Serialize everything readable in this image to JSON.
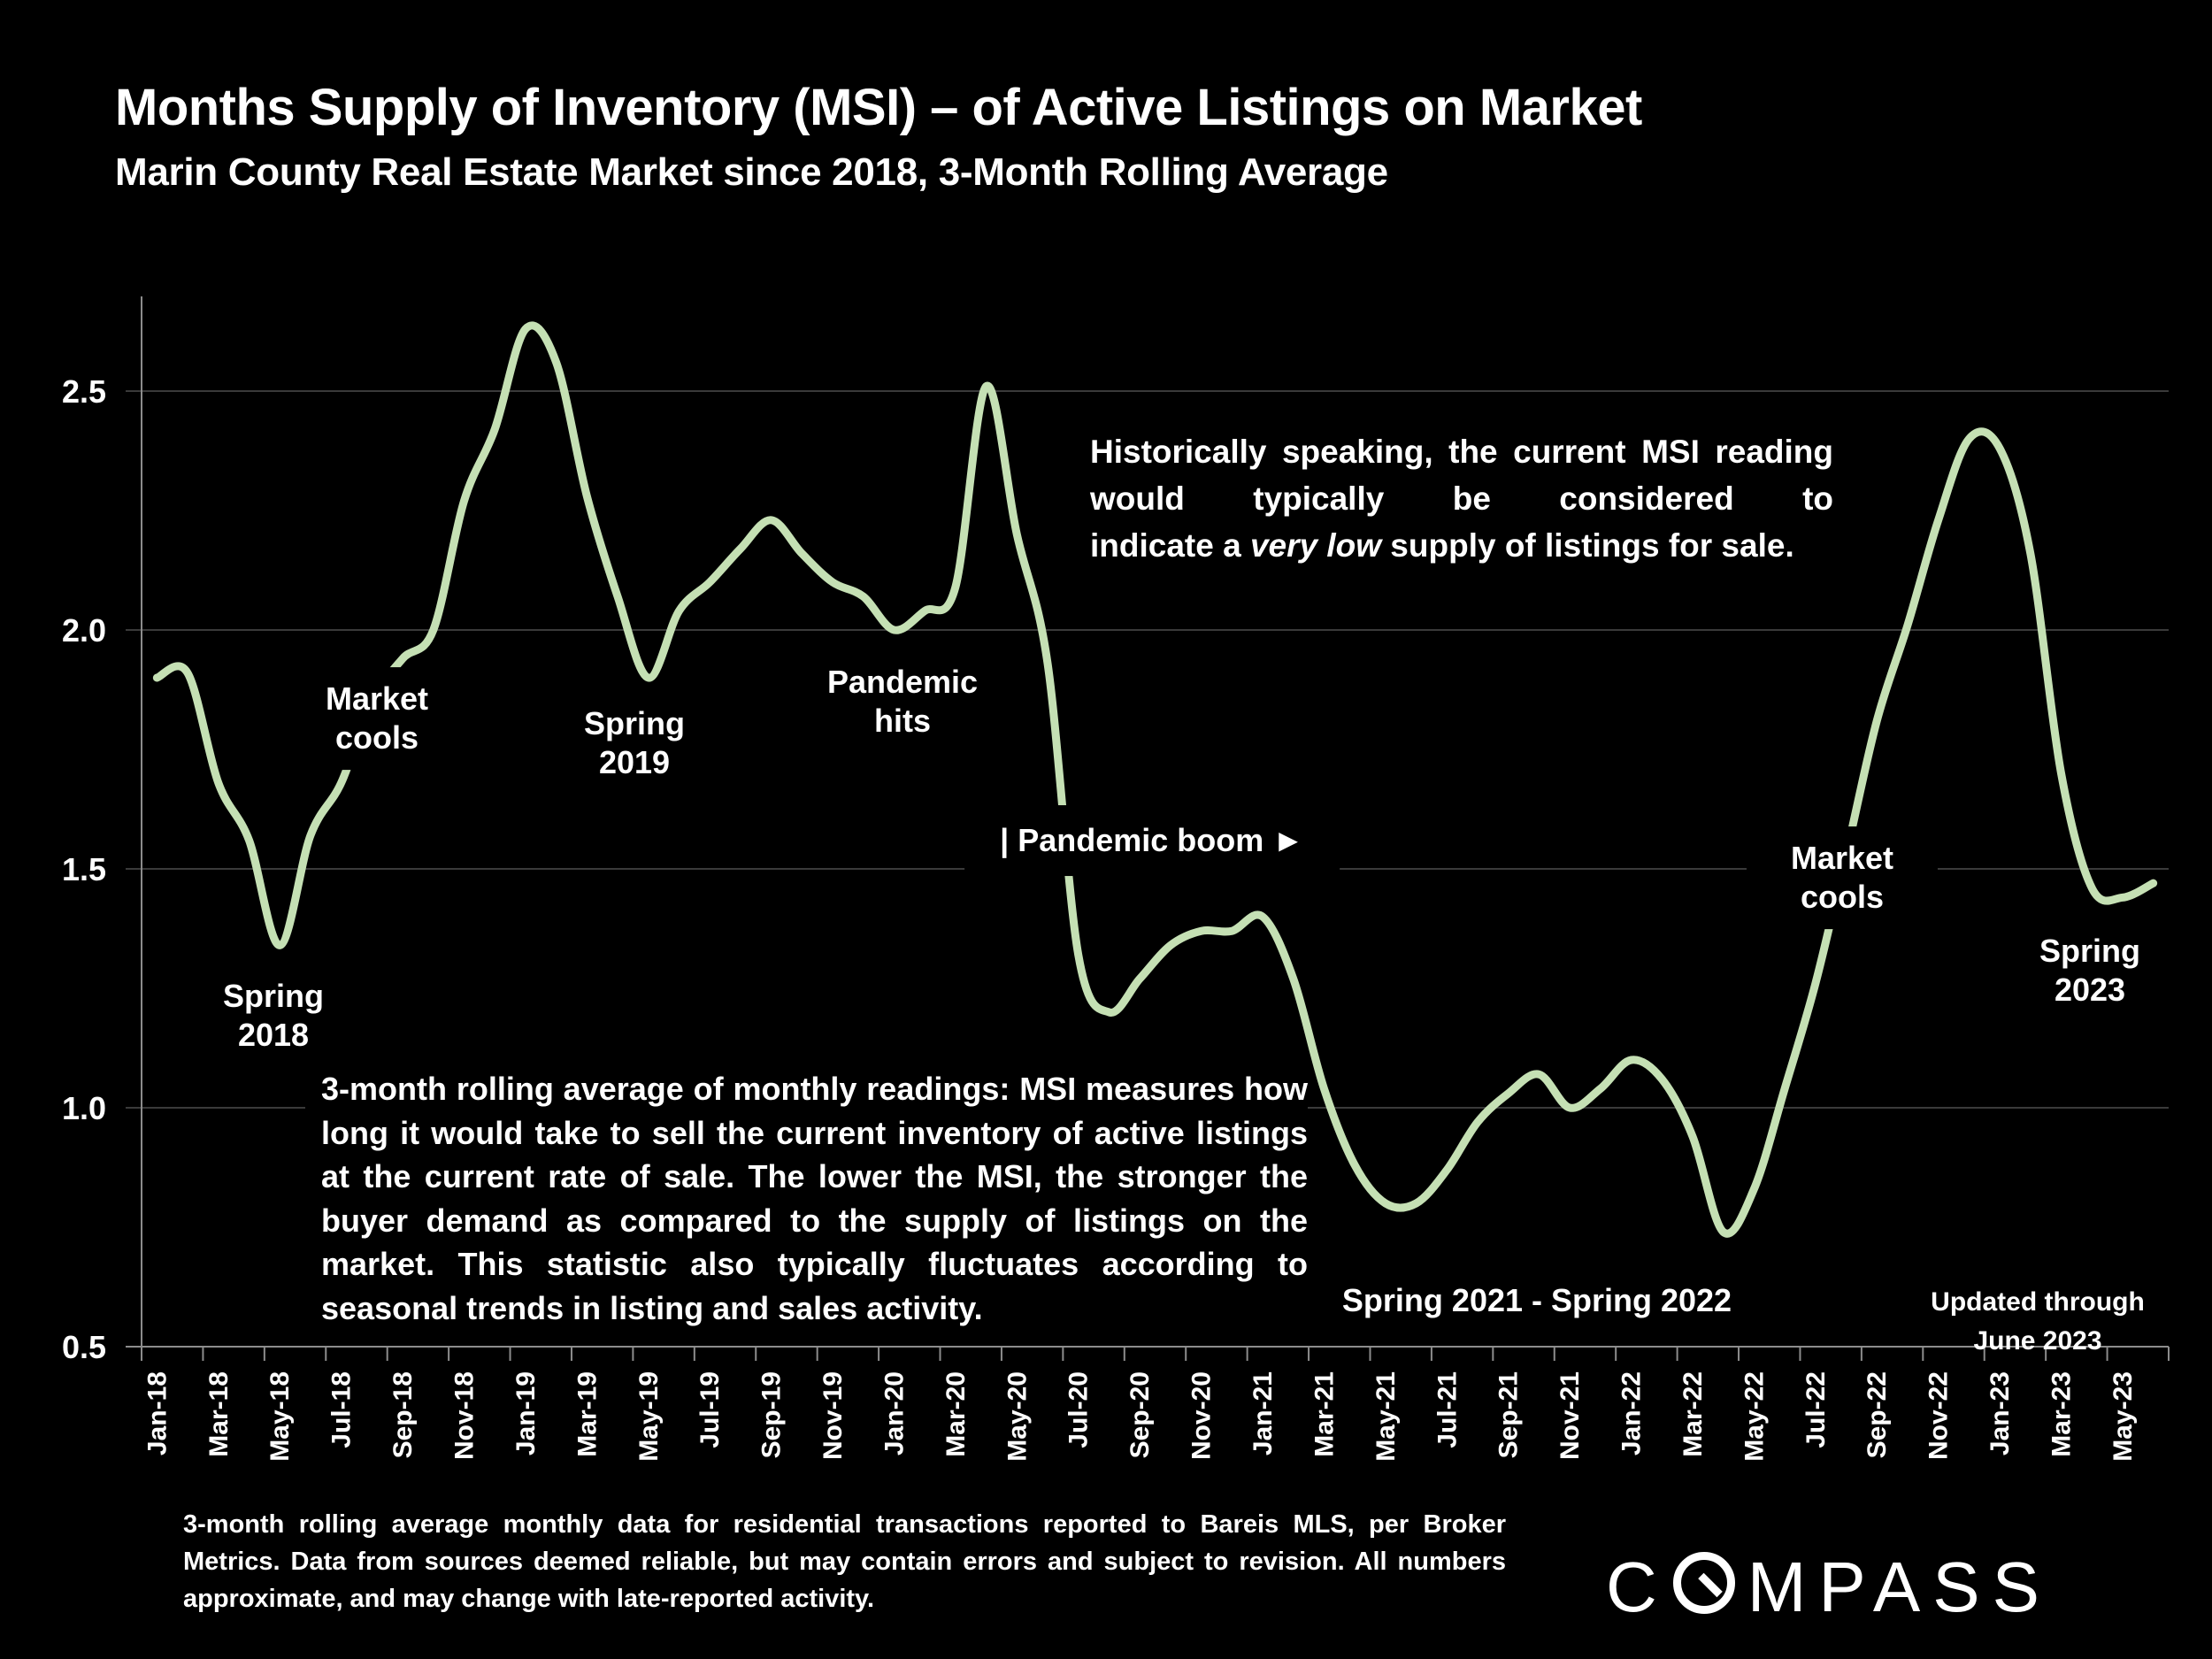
{
  "header": {
    "title": "Months Supply of Inventory (MSI) – of Active Listings on Market",
    "subtitle": "Marin County Real Estate Market since 2018, 3-Month Rolling Average"
  },
  "annotations": {
    "spring_2018": [
      "Spring",
      "2018"
    ],
    "market_cools_1": [
      "Market",
      "cools"
    ],
    "spring_2019": [
      "Spring",
      "2019"
    ],
    "pandemic_hits": [
      "Pandemic",
      "hits"
    ],
    "pandemic_boom": "| Pandemic boom ►",
    "market_cools_2": [
      "Market",
      "cools"
    ],
    "spring_2023": [
      "Spring",
      "2023"
    ],
    "spring_2021_2022": "Spring 2021 - Spring 2022",
    "updated": [
      "Updated through",
      "June 2023"
    ]
  },
  "note_top": {
    "line1": "Historically speaking, the current MSI reading would typically be considered to",
    "pre": "indicate a ",
    "emph": "very low",
    "post": " supply of listings for sale."
  },
  "note_bottom": "3-month rolling average of monthly readings: MSI measures how long it would take to sell the current inventory of active listings at the current rate of sale. The lower the MSI, the stronger the buyer demand as compared to the supply of listings on the market. This statistic also typically fluctuates according to seasonal trends in listing and sales activity.",
  "footer": "3-month rolling average monthly data for residential transactions reported to Bareis MLS, per Broker Metrics. Data from sources deemed reliable, but may contain errors and subject to revision. All numbers approximate, and may change with late-reported activity.",
  "logo": {
    "pre": "C",
    "post": "MPASS"
  },
  "colors": {
    "line": "#c5e0b4",
    "grid": "#3a3a3a",
    "axis": "#8c8c8c",
    "text": "#ffffff",
    "background": "#000000"
  },
  "chart_data": {
    "type": "line",
    "title": "Months Supply of Inventory (MSI) – of Active Listings on Market",
    "subtitle": "Marin County Real Estate Market since 2018, 3-Month Rolling Average",
    "xlabel": "",
    "ylabel": "",
    "ylim": [
      0.5,
      2.7
    ],
    "yticks": [
      0.5,
      1.0,
      1.5,
      2.0,
      2.5
    ],
    "ytick_labels": [
      "0.5",
      "1.0",
      "1.5",
      "2.0",
      "2.5"
    ],
    "grid": true,
    "legend": "none",
    "xtick_labels": [
      "Jan-18",
      "Mar-18",
      "May-18",
      "Jul-18",
      "Sep-18",
      "Nov-18",
      "Jan-19",
      "Mar-19",
      "May-19",
      "Jul-19",
      "Sep-19",
      "Nov-19",
      "Jan-20",
      "Mar-20",
      "May-20",
      "Jul-20",
      "Sep-20",
      "Nov-20",
      "Jan-21",
      "Mar-21",
      "May-21",
      "Jul-21",
      "Sep-21",
      "Nov-21",
      "Jan-22",
      "Mar-22",
      "May-22",
      "Jul-22",
      "Sep-22",
      "Nov-22",
      "Jan-23",
      "Mar-23",
      "May-23"
    ],
    "x": [
      "Jan-18",
      "Feb-18",
      "Mar-18",
      "Apr-18",
      "May-18",
      "Jun-18",
      "Jul-18",
      "Aug-18",
      "Sep-18",
      "Oct-18",
      "Nov-18",
      "Dec-18",
      "Jan-19",
      "Feb-19",
      "Mar-19",
      "Apr-19",
      "May-19",
      "Jun-19",
      "Jul-19",
      "Aug-19",
      "Sep-19",
      "Oct-19",
      "Nov-19",
      "Dec-19",
      "Jan-20",
      "Feb-20",
      "Mar-20",
      "Apr-20",
      "May-20",
      "Jun-20",
      "Jul-20",
      "Aug-20",
      "Sep-20",
      "Oct-20",
      "Nov-20",
      "Dec-20",
      "Jan-21",
      "Feb-21",
      "Mar-21",
      "Apr-21",
      "May-21",
      "Jun-21",
      "Jul-21",
      "Aug-21",
      "Sep-21",
      "Oct-21",
      "Nov-21",
      "Dec-21",
      "Jan-22",
      "Feb-22",
      "Mar-22",
      "Apr-22",
      "May-22",
      "Jun-22",
      "Jul-22",
      "Aug-22",
      "Sep-22",
      "Oct-22",
      "Nov-22",
      "Dec-22",
      "Jan-23",
      "Feb-23",
      "Mar-23",
      "Apr-23",
      "May-23",
      "Jun-23"
    ],
    "series": [
      {
        "name": "MSI (3-month rolling average)",
        "values": [
          1.9,
          1.91,
          1.68,
          1.56,
          1.34,
          1.57,
          1.68,
          1.85,
          1.94,
          2.0,
          2.27,
          2.42,
          2.63,
          2.56,
          2.28,
          2.07,
          1.9,
          2.04,
          2.1,
          2.17,
          2.23,
          2.16,
          2.1,
          2.07,
          2.0,
          2.04,
          2.09,
          2.51,
          2.2,
          1.93,
          1.32,
          1.2,
          1.27,
          1.34,
          1.37,
          1.37,
          1.4,
          1.27,
          1.04,
          0.88,
          0.8,
          0.8,
          0.87,
          0.97,
          1.03,
          1.07,
          1.0,
          1.04,
          1.1,
          1.06,
          0.94,
          0.74,
          0.83,
          1.04,
          1.26,
          1.53,
          1.81,
          2.01,
          2.23,
          2.4,
          2.38,
          2.16,
          1.7,
          1.46,
          1.44,
          1.47
        ]
      }
    ]
  }
}
